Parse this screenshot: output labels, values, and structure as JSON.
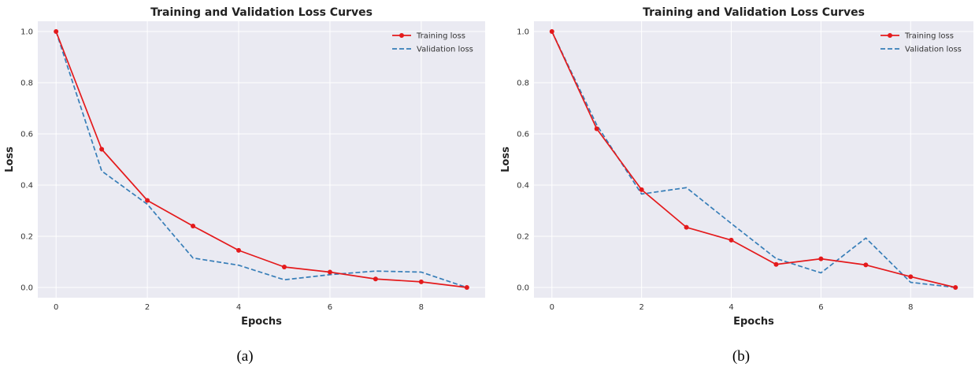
{
  "chart_data": [
    {
      "type": "line",
      "title": "Training and Validation Loss Curves",
      "xlabel": "Epochs",
      "ylabel": "Loss",
      "caption": "(a)",
      "x": [
        0,
        1,
        2,
        3,
        4,
        5,
        6,
        7,
        8,
        9
      ],
      "xlim": [
        -0.4,
        9.4
      ],
      "ylim": [
        -0.04,
        1.04
      ],
      "xticks": [
        "0",
        "2",
        "4",
        "6",
        "8"
      ],
      "yticks": [
        "0.0",
        "0.2",
        "0.4",
        "0.6",
        "0.8",
        "1.0"
      ],
      "grid": true,
      "legend_position": "top-right",
      "series": [
        {
          "name": "Training loss",
          "color": "#e41a1c",
          "style": "solid",
          "marker": "circle",
          "values": [
            1.0,
            0.54,
            0.34,
            0.24,
            0.145,
            0.08,
            0.06,
            0.033,
            0.022,
            0.0
          ]
        },
        {
          "name": "Validation loss",
          "color": "#377eb8",
          "style": "dashed",
          "marker": "none",
          "values": [
            1.0,
            0.455,
            0.325,
            0.115,
            0.087,
            0.03,
            0.05,
            0.064,
            0.06,
            0.0
          ]
        }
      ]
    },
    {
      "type": "line",
      "title": "Training and Validation Loss Curves",
      "xlabel": "Epochs",
      "ylabel": "Loss",
      "caption": "(b)",
      "x": [
        0,
        1,
        2,
        3,
        4,
        5,
        6,
        7,
        8,
        9
      ],
      "xlim": [
        -0.4,
        9.4
      ],
      "ylim": [
        -0.04,
        1.04
      ],
      "xticks": [
        "0",
        "2",
        "4",
        "6",
        "8"
      ],
      "yticks": [
        "0.0",
        "0.2",
        "0.4",
        "0.6",
        "0.8",
        "1.0"
      ],
      "grid": true,
      "legend_position": "top-right",
      "series": [
        {
          "name": "Training loss",
          "color": "#e41a1c",
          "style": "solid",
          "marker": "circle",
          "values": [
            1.0,
            0.62,
            0.382,
            0.235,
            0.185,
            0.09,
            0.112,
            0.088,
            0.042,
            0.0
          ]
        },
        {
          "name": "Validation loss",
          "color": "#377eb8",
          "style": "dashed",
          "marker": "none",
          "values": [
            1.0,
            0.635,
            0.365,
            0.39,
            0.25,
            0.113,
            0.057,
            0.193,
            0.02,
            0.0
          ]
        }
      ]
    }
  ]
}
